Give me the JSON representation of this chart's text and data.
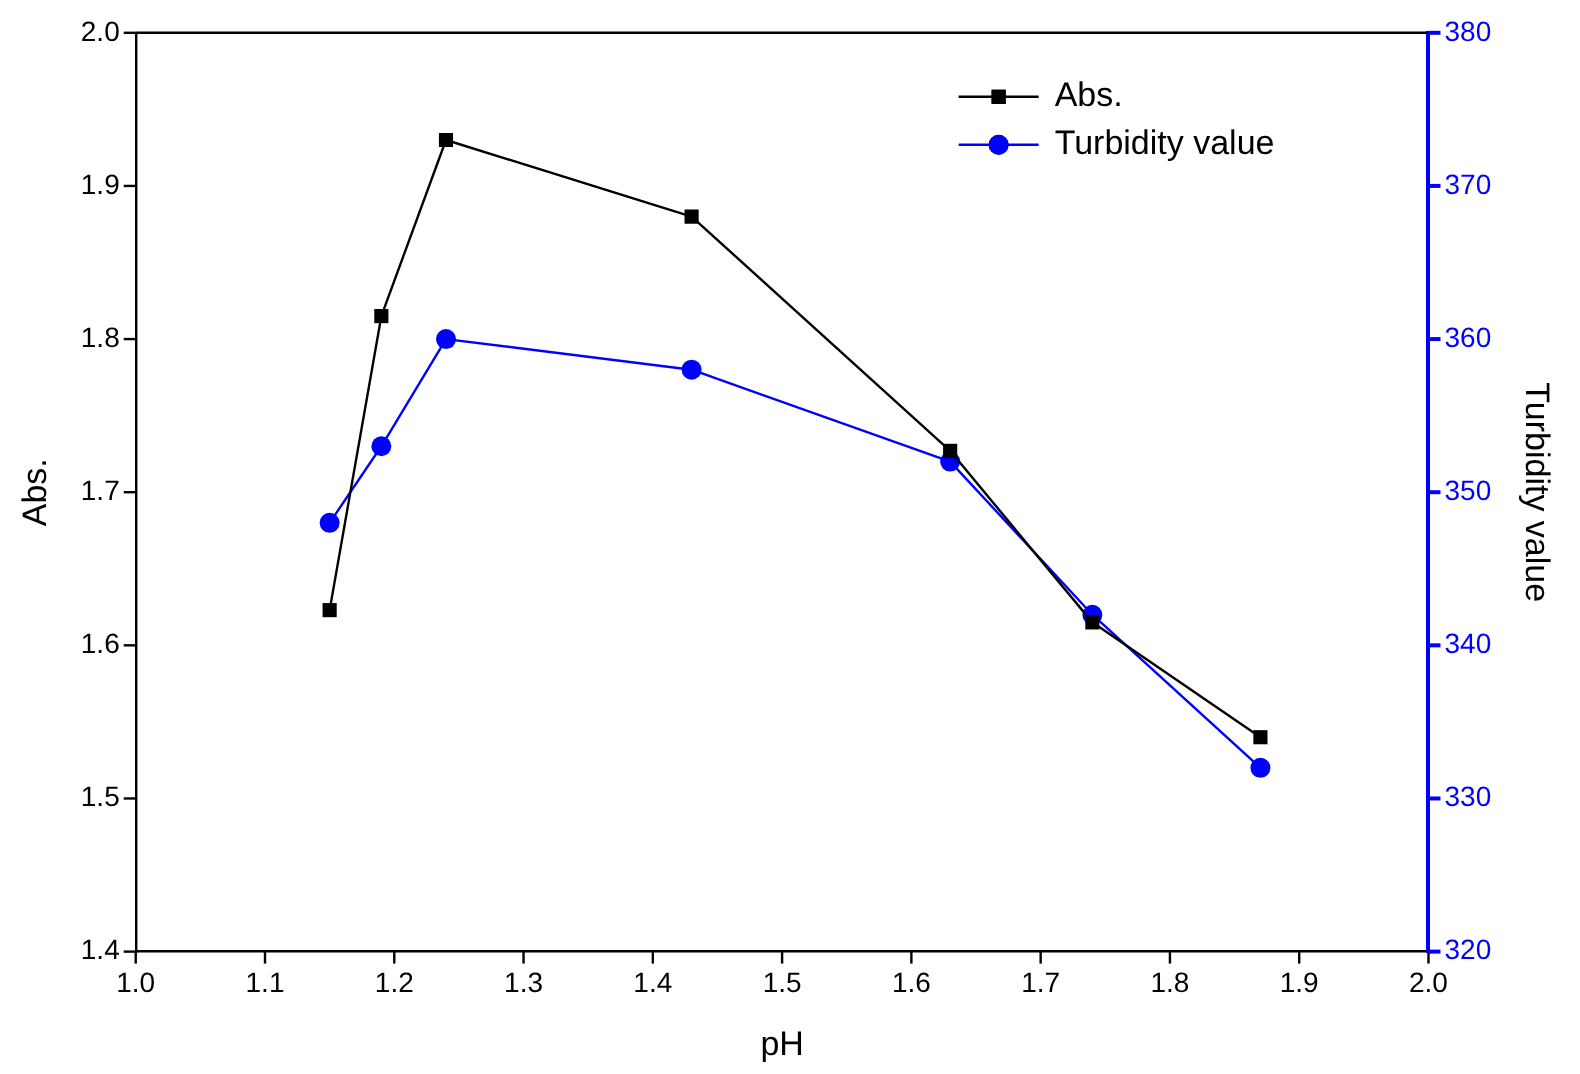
{
  "chart_data": {
    "type": "line",
    "xlabel": "pH",
    "ylabel": "Abs.",
    "y2label": "Turbidity value",
    "xlim": [
      1.0,
      2.0
    ],
    "xticks": [
      {
        "value": 1.0,
        "label": "1.0"
      },
      {
        "value": 1.1,
        "label": "1.1"
      },
      {
        "value": 1.2,
        "label": "1.2"
      },
      {
        "value": 1.3,
        "label": "1.3"
      },
      {
        "value": 1.4,
        "label": "1.4"
      },
      {
        "value": 1.5,
        "label": "1.5"
      },
      {
        "value": 1.6,
        "label": "1.6"
      },
      {
        "value": 1.7,
        "label": "1.7"
      },
      {
        "value": 1.8,
        "label": "1.8"
      },
      {
        "value": 1.9,
        "label": "1.9"
      },
      {
        "value": 2.0,
        "label": "2.0"
      }
    ],
    "ylim": [
      1.4,
      2.0
    ],
    "yticks": [
      {
        "value": 1.4,
        "label": "1.4"
      },
      {
        "value": 1.5,
        "label": "1.5"
      },
      {
        "value": 1.6,
        "label": "1.6"
      },
      {
        "value": 1.7,
        "label": "1.7"
      },
      {
        "value": 1.8,
        "label": "1.8"
      },
      {
        "value": 1.9,
        "label": "1.9"
      },
      {
        "value": 2.0,
        "label": "2.0"
      }
    ],
    "y2lim": [
      320,
      380
    ],
    "y2ticks": [
      320,
      330,
      340,
      350,
      360,
      370,
      380
    ],
    "x": [
      1.15,
      1.19,
      1.24,
      1.43,
      1.63,
      1.74,
      1.87
    ],
    "series": [
      {
        "name": "Abs.",
        "color": "#000000",
        "marker": "square",
        "values": [
          1.623,
          1.815,
          1.93,
          1.88,
          1.727,
          1.615,
          1.54
        ]
      },
      {
        "name": "Turbidity value",
        "color": "#0000ff",
        "marker": "circle",
        "axis": "y2",
        "values": [
          348,
          353,
          360,
          358,
          352,
          342,
          332
        ]
      }
    ],
    "legend": "top right",
    "grid": false
  }
}
